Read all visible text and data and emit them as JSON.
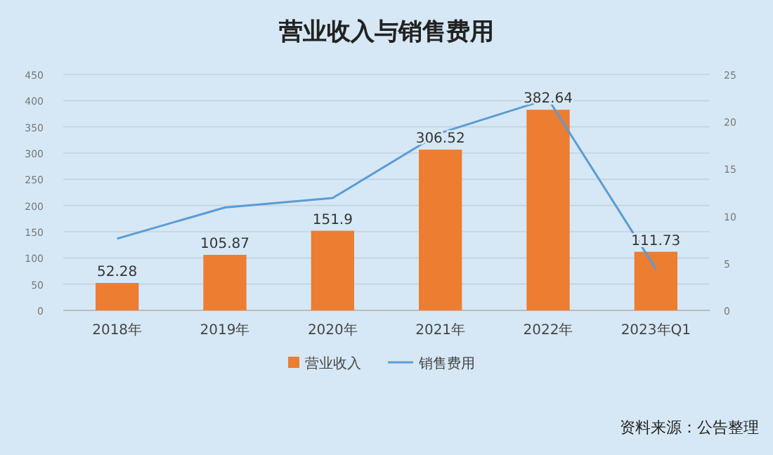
{
  "chart_data": {
    "type": "bar",
    "title": "营业收入与销售费用",
    "categories": [
      "2018年",
      "2019年",
      "2020年",
      "2021年",
      "2022年",
      "2023年Q1"
    ],
    "series": [
      {
        "name": "营业收入",
        "color": "#ed7d31",
        "values": [
          52.28,
          105.87,
          151.9,
          306.52,
          382.64,
          111.73
        ],
        "value_labels": [
          "52.28",
          "105.87",
          "151.9",
          "306.52",
          "382.64",
          "111.73"
        ]
      },
      {
        "name": "销售费用",
        "type": "line",
        "axis": "y2",
        "color": "#5b9bd5",
        "values": [
          7.6,
          10.9,
          11.9,
          18.8,
          22.4,
          4.4
        ]
      }
    ],
    "ylim": [
      0,
      450
    ],
    "yticks": [
      0,
      50,
      100,
      150,
      200,
      250,
      300,
      350,
      400,
      450
    ],
    "y2lim": [
      0,
      25
    ],
    "y2ticks": [
      0,
      5,
      10,
      15,
      20,
      25
    ],
    "grid": "y",
    "legend": "bottom",
    "annotations": [
      "资料来源：公告整理"
    ]
  }
}
